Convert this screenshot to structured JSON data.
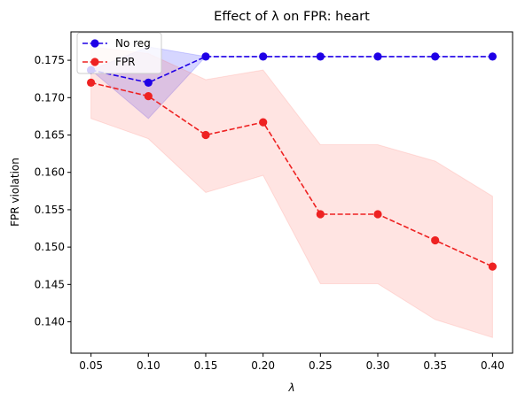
{
  "chart_data": {
    "type": "line",
    "title": "Effect of λ on FPR: heart",
    "xlabel": "λ",
    "ylabel": "FPR violation",
    "x": [
      0.05,
      0.1,
      0.15,
      0.2,
      0.25,
      0.3,
      0.35,
      0.4
    ],
    "x_tick_labels": [
      "0.05",
      "0.10",
      "0.15",
      "0.20",
      "0.25",
      "0.30",
      "0.35",
      "0.40"
    ],
    "y_ticks": [
      0.14,
      0.145,
      0.15,
      0.155,
      0.16,
      0.165,
      0.17,
      0.175
    ],
    "y_tick_labels": [
      "0.140",
      "0.145",
      "0.150",
      "0.155",
      "0.160",
      "0.165",
      "0.170",
      "0.175"
    ],
    "xlim": [
      0.0325,
      0.4175
    ],
    "ylim": [
      0.1358,
      0.1788
    ],
    "grid": false,
    "legend_position": "top-left",
    "series": [
      {
        "name": "No reg",
        "color": "#1f00e6",
        "band_color": "#0000ff",
        "values": [
          0.1737,
          0.172,
          0.1755,
          0.1755,
          0.1755,
          0.1755,
          0.1755,
          0.1755
        ],
        "lower": [
          0.1737,
          0.1672,
          0.1755,
          0.1755,
          0.1755,
          0.1755,
          0.1755,
          0.1755
        ],
        "upper": [
          0.1737,
          0.1768,
          0.1755,
          0.1755,
          0.1755,
          0.1755,
          0.1755,
          0.1755
        ]
      },
      {
        "name": "FPR",
        "color": "#ee2222",
        "band_color": "#ff5a4a",
        "values": [
          0.172,
          0.1702,
          0.165,
          0.1667,
          0.1544,
          0.1544,
          0.1509,
          0.1474
        ],
        "lower": [
          0.1672,
          0.1645,
          0.1573,
          0.1596,
          0.1451,
          0.1451,
          0.1403,
          0.1379
        ],
        "upper": [
          0.1768,
          0.1759,
          0.1724,
          0.1737,
          0.1637,
          0.1637,
          0.1615,
          0.1568
        ]
      }
    ]
  }
}
